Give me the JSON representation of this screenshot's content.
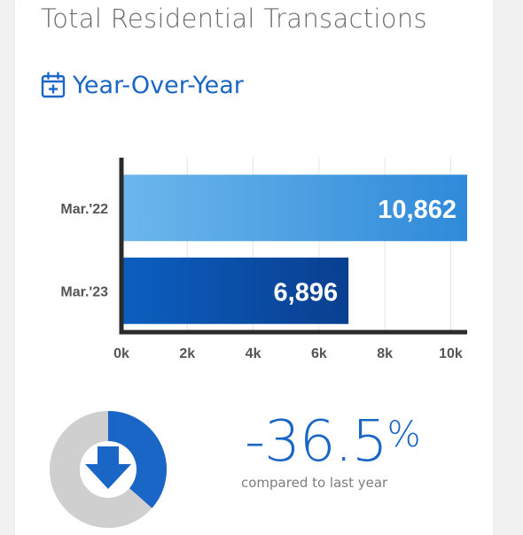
{
  "header": {
    "title": "Total Residential Transactions",
    "subtitle": "Year-Over-Year",
    "subtitle_icon": "calendar-plus-icon"
  },
  "chart_data": {
    "type": "bar",
    "orientation": "horizontal",
    "categories": [
      "Mar.'22",
      "Mar.'23"
    ],
    "values": [
      10862,
      6896
    ],
    "value_labels": [
      "10,862",
      "6,896"
    ],
    "xlim": [
      0,
      10500
    ],
    "x_ticks": [
      0,
      2000,
      4000,
      6000,
      8000,
      10000
    ],
    "x_tick_labels": [
      "0k",
      "2k",
      "4k",
      "6k",
      "8k",
      "10k"
    ],
    "grid": true,
    "legend": "none",
    "bar_colors": [
      [
        "#6cb7ec",
        "#2f8ad9"
      ],
      [
        "#0b5fc0",
        "#0a3f90"
      ]
    ]
  },
  "summary": {
    "percent_value": "-36.5",
    "percent_sign": "%",
    "caption": "compared to last year",
    "direction_icon": "arrow-down-icon",
    "donut_fraction": 0.365,
    "colors": {
      "accent": "#1a66c6",
      "track": "#cfcfcf"
    }
  }
}
